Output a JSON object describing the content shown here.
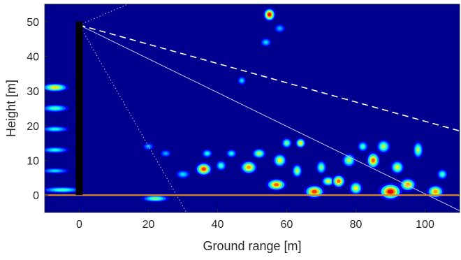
{
  "chart_data": {
    "type": "heatmap",
    "title": "",
    "xlabel": "Ground range [m]",
    "ylabel": "Height [m]",
    "xlim": [
      -10,
      110
    ],
    "ylim": [
      -5,
      55
    ],
    "x_ticks": [
      0,
      20,
      40,
      60,
      80,
      100
    ],
    "y_ticks": [
      0,
      10,
      20,
      30,
      40,
      50
    ],
    "colormap": "jet",
    "grid": false,
    "legend": "none",
    "tower": {
      "x": 0,
      "bottom": 0,
      "top": 50,
      "width": 2,
      "color": "#000000"
    },
    "ground_line": {
      "y": 0,
      "color": "#e08a1a"
    },
    "sight_lines": [
      {
        "from": [
          0,
          49
        ],
        "to": [
          110,
          18.5
        ],
        "style": "dashed",
        "color": "#ffffff"
      },
      {
        "from": [
          0,
          49
        ],
        "to": [
          110,
          -4.5
        ],
        "style": "solid",
        "color": "#d8d8ff"
      },
      {
        "from": [
          0,
          49
        ],
        "to": [
          31,
          -5
        ],
        "style": "dotted",
        "color": "#d8d8ff"
      },
      {
        "from": [
          0,
          49
        ],
        "to": [
          14,
          55
        ],
        "style": "dotted",
        "color": "#d8d8ff"
      }
    ],
    "blobs": [
      {
        "x": -7,
        "y": 31,
        "rx": 4,
        "ry": 1.3,
        "v": 0.65
      },
      {
        "x": -7,
        "y": 25,
        "rx": 4,
        "ry": 1.1,
        "v": 0.45
      },
      {
        "x": -7,
        "y": 19,
        "rx": 4,
        "ry": 0.9,
        "v": 0.4
      },
      {
        "x": -7,
        "y": 13,
        "rx": 4,
        "ry": 0.9,
        "v": 0.4
      },
      {
        "x": -7,
        "y": 7,
        "rx": 4,
        "ry": 0.8,
        "v": 0.35
      },
      {
        "x": -5,
        "y": 1.5,
        "rx": 6,
        "ry": 0.9,
        "v": 0.45
      },
      {
        "x": 22,
        "y": -1,
        "rx": 4,
        "ry": 1,
        "v": 0.5
      },
      {
        "x": 20,
        "y": 14,
        "rx": 1.5,
        "ry": 1,
        "v": 0.3
      },
      {
        "x": 25,
        "y": 12,
        "rx": 1.5,
        "ry": 1,
        "v": 0.3
      },
      {
        "x": 30,
        "y": 6,
        "rx": 2,
        "ry": 1.2,
        "v": 0.35
      },
      {
        "x": 36,
        "y": 7.5,
        "rx": 2.5,
        "ry": 2,
        "v": 0.82
      },
      {
        "x": 37,
        "y": 12,
        "rx": 1.5,
        "ry": 1.2,
        "v": 0.4
      },
      {
        "x": 41,
        "y": 8.5,
        "rx": 1.5,
        "ry": 1.5,
        "v": 0.45
      },
      {
        "x": 44,
        "y": 12,
        "rx": 1.5,
        "ry": 1.2,
        "v": 0.4
      },
      {
        "x": 49,
        "y": 8,
        "rx": 2.5,
        "ry": 2,
        "v": 0.72
      },
      {
        "x": 52,
        "y": 12,
        "rx": 2,
        "ry": 1.5,
        "v": 0.55
      },
      {
        "x": 55,
        "y": 52,
        "rx": 1.8,
        "ry": 2,
        "v": 0.88
      },
      {
        "x": 54,
        "y": 44,
        "rx": 1.5,
        "ry": 1.2,
        "v": 0.35
      },
      {
        "x": 58,
        "y": 48,
        "rx": 1.5,
        "ry": 1.2,
        "v": 0.3
      },
      {
        "x": 47,
        "y": 33,
        "rx": 1.2,
        "ry": 1.2,
        "v": 0.35
      },
      {
        "x": 57,
        "y": 3,
        "rx": 3,
        "ry": 1.8,
        "v": 0.78
      },
      {
        "x": 58,
        "y": 10,
        "rx": 2,
        "ry": 2,
        "v": 0.62
      },
      {
        "x": 60,
        "y": 15,
        "rx": 1.5,
        "ry": 1.5,
        "v": 0.5
      },
      {
        "x": 63,
        "y": 7,
        "rx": 1.5,
        "ry": 2,
        "v": 0.55
      },
      {
        "x": 64,
        "y": 15,
        "rx": 1.5,
        "ry": 1.5,
        "v": 0.65
      },
      {
        "x": 68,
        "y": 1,
        "rx": 3,
        "ry": 2,
        "v": 0.82
      },
      {
        "x": 70,
        "y": 8,
        "rx": 1.5,
        "ry": 2,
        "v": 0.5
      },
      {
        "x": 72,
        "y": 4,
        "rx": 2,
        "ry": 1.5,
        "v": 0.6
      },
      {
        "x": 75,
        "y": 4,
        "rx": 2,
        "ry": 2,
        "v": 0.78
      },
      {
        "x": 78,
        "y": 10,
        "rx": 2,
        "ry": 2,
        "v": 0.55
      },
      {
        "x": 80,
        "y": 2,
        "rx": 2,
        "ry": 2,
        "v": 0.62
      },
      {
        "x": 82,
        "y": 14,
        "rx": 1.5,
        "ry": 1.5,
        "v": 0.45
      },
      {
        "x": 85,
        "y": 10,
        "rx": 2,
        "ry": 2.5,
        "v": 0.78
      },
      {
        "x": 88,
        "y": 14,
        "rx": 2,
        "ry": 2,
        "v": 0.55
      },
      {
        "x": 90,
        "y": 1,
        "rx": 3.5,
        "ry": 2.5,
        "v": 0.9
      },
      {
        "x": 92,
        "y": 8,
        "rx": 2,
        "ry": 2,
        "v": 0.6
      },
      {
        "x": 95,
        "y": 3,
        "rx": 2.5,
        "ry": 2,
        "v": 0.72
      },
      {
        "x": 98,
        "y": 13,
        "rx": 1.5,
        "ry": 2.5,
        "v": 0.55
      },
      {
        "x": 103,
        "y": 1,
        "rx": 2.5,
        "ry": 2,
        "v": 0.72
      },
      {
        "x": 105,
        "y": 6,
        "rx": 1.5,
        "ry": 1.5,
        "v": 0.45
      }
    ]
  }
}
